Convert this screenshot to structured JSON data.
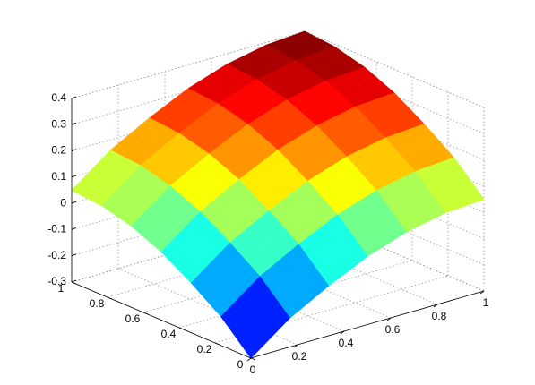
{
  "chart_data": {
    "type": "surface",
    "colormap": "jet",
    "grid": true,
    "x": [
      0,
      0.1667,
      0.3333,
      0.5,
      0.6667,
      0.8333,
      1
    ],
    "y": [
      0,
      0.1667,
      0.3333,
      0.5,
      0.6667,
      0.8333,
      1
    ],
    "z": [
      [
        -0.3,
        -0.19,
        -0.11,
        -0.04,
        0.01,
        0.04,
        0.05
      ],
      [
        -0.19,
        -0.08,
        0.0,
        0.07,
        0.12,
        0.15,
        0.16
      ],
      [
        -0.11,
        0.0,
        0.08,
        0.15,
        0.2,
        0.23,
        0.24
      ],
      [
        -0.04,
        0.07,
        0.15,
        0.22,
        0.27,
        0.3,
        0.31
      ],
      [
        0.01,
        0.12,
        0.2,
        0.27,
        0.32,
        0.35,
        0.36
      ],
      [
        0.04,
        0.15,
        0.23,
        0.3,
        0.35,
        0.38,
        0.39
      ],
      [
        0.05,
        0.16,
        0.24,
        0.31,
        0.36,
        0.39,
        0.4
      ]
    ],
    "xlim": [
      0,
      1
    ],
    "ylim": [
      0,
      1
    ],
    "zlim": [
      -0.3,
      0.4
    ],
    "xticks": [
      0,
      0.2,
      0.4,
      0.6,
      0.8,
      1
    ],
    "yticks": [
      0,
      0.2,
      0.4,
      0.6,
      0.8,
      1
    ],
    "zticks": [
      -0.3,
      -0.2,
      -0.1,
      0,
      0.1,
      0.2,
      0.3,
      0.4
    ]
  }
}
